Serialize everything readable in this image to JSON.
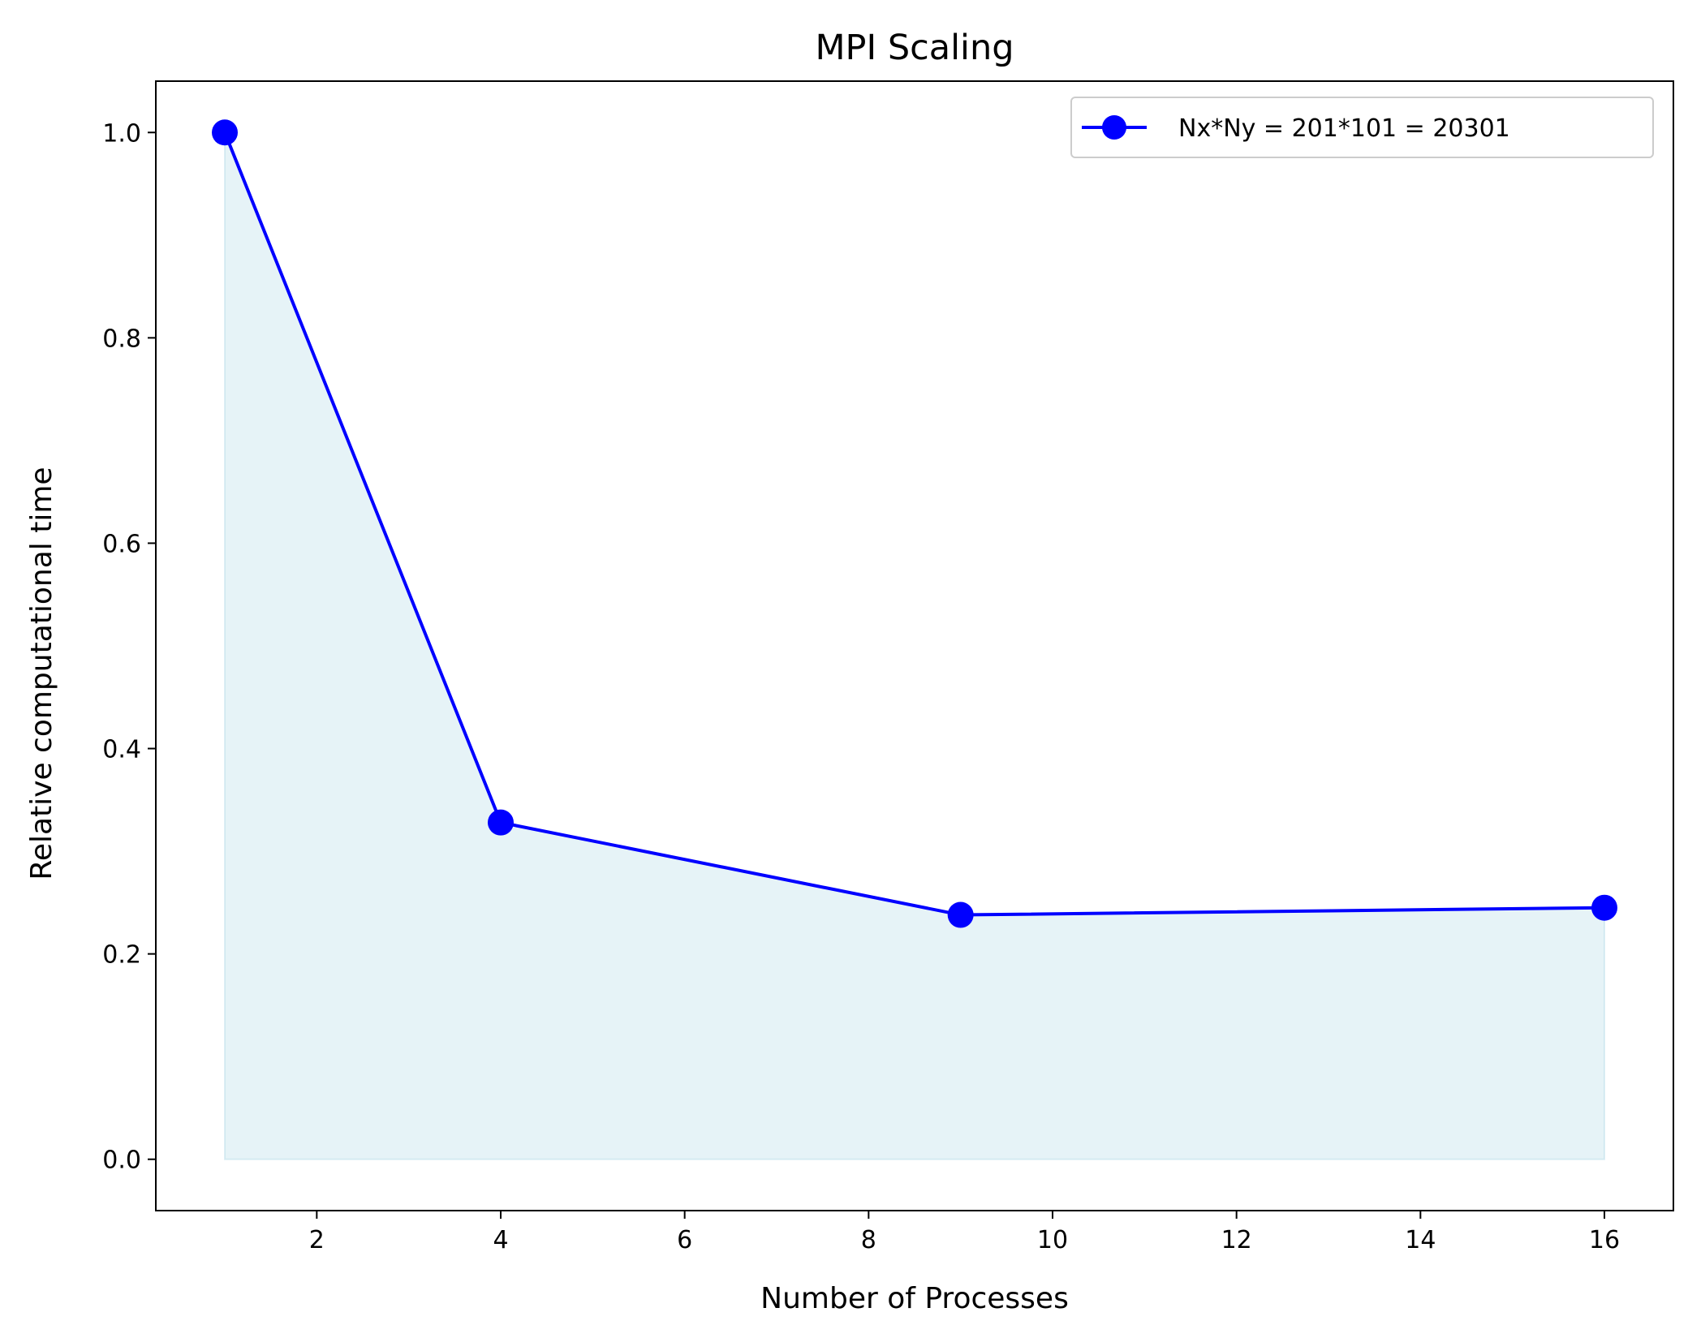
{
  "chart_data": {
    "type": "line",
    "title": "MPI Scaling",
    "xlabel": "Number of Processes",
    "ylabel": "Relative computational time",
    "xlim": [
      0.25,
      16.75
    ],
    "ylim": [
      -0.05,
      1.05
    ],
    "xticks": [
      2,
      4,
      6,
      8,
      10,
      12,
      14,
      16
    ],
    "yticks": [
      0.0,
      0.2,
      0.4,
      0.6,
      0.8,
      1.0
    ],
    "xtick_labels": [
      "2",
      "4",
      "6",
      "8",
      "10",
      "12",
      "14",
      "16"
    ],
    "ytick_labels": [
      "0.0",
      "0.2",
      "0.4",
      "0.6",
      "0.8",
      "1.0"
    ],
    "grid": false,
    "legend_position": "top-right",
    "series": [
      {
        "name": "Nx*Ny = 201*101 = 20301",
        "x": [
          1,
          4,
          9,
          16
        ],
        "y": [
          1.0,
          0.328,
          0.238,
          0.245
        ],
        "color": "#0000ff",
        "marker": "circle",
        "fill_to_zero": true,
        "fill_color": "#add8e6"
      }
    ]
  }
}
